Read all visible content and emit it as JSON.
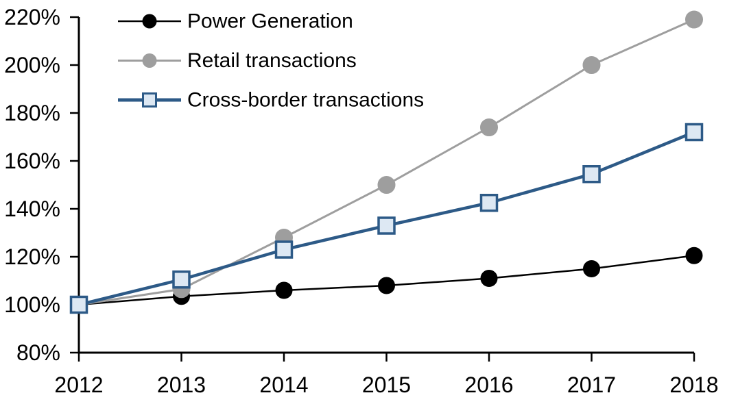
{
  "page": {
    "background": "#ffffff"
  },
  "chart_data": {
    "type": "line",
    "title": "",
    "xlabel": "",
    "ylabel": "",
    "x": [
      2012,
      2013,
      2014,
      2015,
      2016,
      2017,
      2018
    ],
    "x_labels": [
      "2012",
      "2013",
      "2014",
      "2015",
      "2016",
      "2017",
      "2018"
    ],
    "ylim": [
      80,
      220
    ],
    "ytick_step": 20,
    "ytick_labels": [
      "80%",
      "100%",
      "120%",
      "140%",
      "160%",
      "180%",
      "200%",
      "220%"
    ],
    "grid": false,
    "legend_position": "top-left",
    "axis_color": "#000000",
    "series": [
      {
        "name": "Power Generation",
        "slug": "power-generation",
        "color": "#000000",
        "marker": "circle",
        "marker_fill": "#000000",
        "marker_stroke": "#000000",
        "line_width": 2.5,
        "values": [
          100,
          103.5,
          106,
          108,
          111,
          115,
          120.5
        ]
      },
      {
        "name": "Retail transactions",
        "slug": "retail-transactions",
        "color": "#9e9e9e",
        "marker": "circle",
        "marker_fill": "#9e9e9e",
        "marker_stroke": "#9e9e9e",
        "line_width": 3,
        "values": [
          100,
          106.5,
          128,
          150,
          174,
          200,
          219
        ]
      },
      {
        "name": "Cross-border transactions",
        "slug": "cross-border-transactions",
        "color": "#2d5a87",
        "marker": "square",
        "marker_fill": "#dde8f3",
        "marker_stroke": "#2d5a87",
        "line_width": 4.5,
        "values": [
          100,
          110.5,
          123,
          133,
          142.5,
          154.5,
          172
        ]
      }
    ]
  }
}
